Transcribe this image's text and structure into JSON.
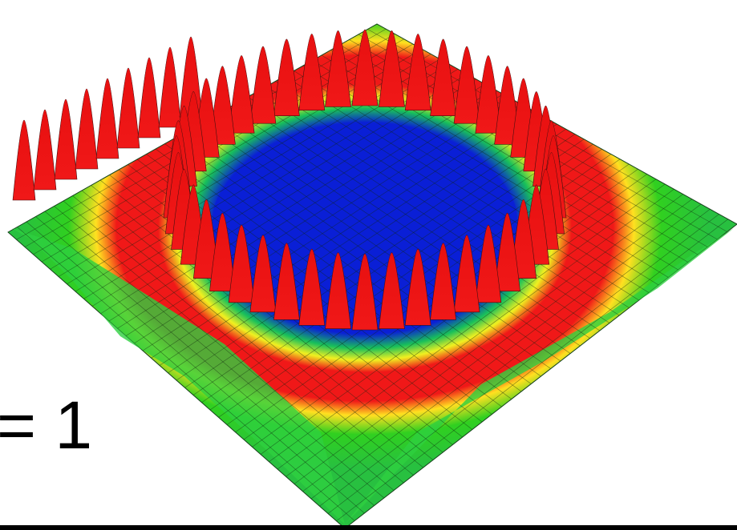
{
  "label": "= 1"
}
